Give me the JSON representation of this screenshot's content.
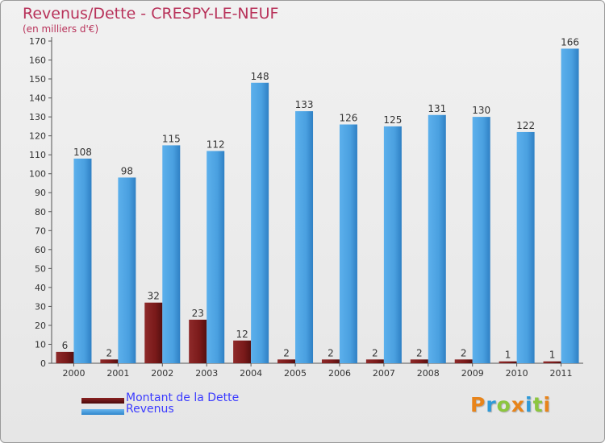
{
  "chart_data": {
    "type": "bar",
    "title": "Revenus/Dette - CRESPY-LE-NEUF",
    "subtitle": "(en milliers d'€)",
    "categories": [
      "2000",
      "2001",
      "2002",
      "2003",
      "2004",
      "2005",
      "2006",
      "2007",
      "2008",
      "2009",
      "2010",
      "2011"
    ],
    "series": [
      {
        "name": "Montant de la Dette",
        "values": [
          6,
          2,
          32,
          23,
          12,
          2,
          2,
          2,
          2,
          2,
          1,
          1
        ],
        "color": "#7a1a1a"
      },
      {
        "name": "Revenus",
        "values": [
          108,
          98,
          115,
          112,
          148,
          133,
          126,
          125,
          131,
          130,
          122,
          166
        ],
        "color": "#4aa0e0"
      }
    ],
    "ylim": [
      0,
      170
    ],
    "ytick_step": 10,
    "grid": false,
    "legend_position": "bottom-left"
  },
  "logo": {
    "text": "Proxiti",
    "colors": [
      "#e8841a",
      "#2f9ad8",
      "#8cc63e",
      "#e8841a",
      "#2f9ad8",
      "#8cc63e",
      "#e8841a"
    ]
  }
}
